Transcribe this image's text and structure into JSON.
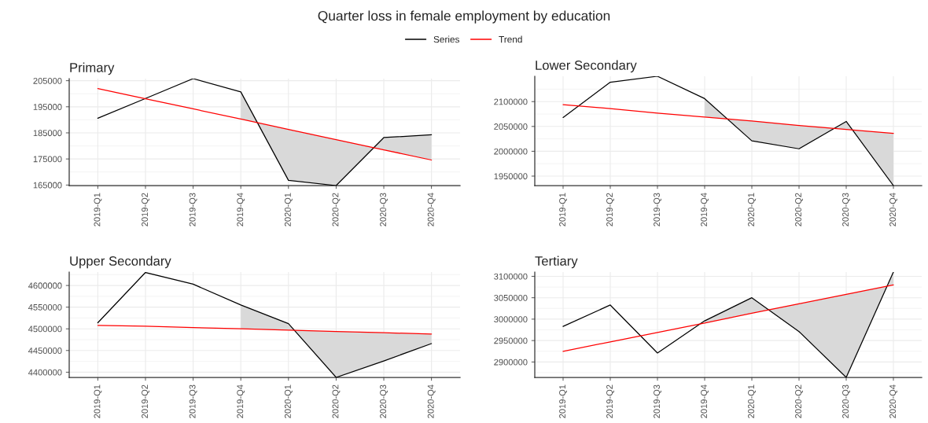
{
  "chart_data": [
    {
      "type": "line",
      "title": "Primary",
      "annotations": [
        "Quarter loss in female employment by education"
      ],
      "legend": "top",
      "grid": true,
      "categories": [
        "2019-Q1",
        "2019-Q2",
        "2019-Q3",
        "2019-Q4",
        "2020-Q1",
        "2020-Q2",
        "2020-Q3",
        "2020-Q4"
      ],
      "ylim": [
        164800,
        205800
      ],
      "yticks": [
        165000,
        175000,
        185000,
        195000,
        205000
      ],
      "series": [
        {
          "name": "Series",
          "color": "#000000",
          "values": [
            190600,
            198200,
            205800,
            200700,
            166800,
            164800,
            183200,
            184300
          ],
          "lower": [
            null,
            null,
            null,
            190300,
            186300,
            182400,
            178500,
            174600
          ],
          "upper": [
            null,
            null,
            null,
            200700,
            166800,
            164800,
            183200,
            184300
          ]
        },
        {
          "name": "Trend",
          "color": "#ff0000",
          "values": [
            202000,
            198100,
            194200,
            190300,
            186300,
            182400,
            178500,
            174600
          ]
        }
      ]
    },
    {
      "type": "line",
      "title": "Lower Secondary",
      "grid": true,
      "categories": [
        "2019-Q1",
        "2019-Q2",
        "2019-Q3",
        "2019-Q4",
        "2020-Q1",
        "2020-Q2",
        "2020-Q3",
        "2020-Q4"
      ],
      "ylim": [
        1931000,
        2151000
      ],
      "yticks": [
        1950000,
        2000000,
        2050000,
        2100000
      ],
      "series": [
        {
          "color": "#000000",
          "values": [
            2068000,
            2139000,
            2151000,
            2106000,
            2021000,
            2005000,
            2060000,
            1931000
          ],
          "lower": [
            null,
            null,
            null,
            2069000,
            2061000,
            2052000,
            2044000,
            2036000
          ],
          "upper": [
            null,
            null,
            null,
            2106000,
            2021000,
            2005000,
            2060000,
            1931000
          ]
        },
        {
          "color": "#ff0000",
          "values": [
            2094000,
            2086000,
            2077000,
            2069000,
            2061000,
            2052000,
            2044000,
            2036000
          ]
        }
      ]
    },
    {
      "type": "line",
      "title": "Upper Secondary",
      "grid": true,
      "categories": [
        "2019-Q1",
        "2019-Q2",
        "2019-Q3",
        "2019-Q4",
        "2020-Q1",
        "2020-Q2",
        "2020-Q3",
        "2020-Q4"
      ],
      "ylim": [
        4388000,
        4631000
      ],
      "yticks": [
        4400000,
        4450000,
        4500000,
        4550000,
        4600000
      ],
      "series": [
        {
          "color": "#000000",
          "values": [
            4514000,
            4630000,
            4603000,
            4555000,
            4512000,
            4388000,
            4426000,
            4466000
          ],
          "lower": [
            null,
            null,
            null,
            4500000,
            4497000,
            4494000,
            4491000,
            4488000
          ],
          "upper": [
            null,
            null,
            null,
            4555000,
            4512000,
            4388000,
            4426000,
            4466000
          ]
        },
        {
          "color": "#ff0000",
          "values": [
            4508000,
            4506000,
            4503000,
            4500000,
            4497000,
            4494000,
            4491000,
            4488000
          ]
        }
      ]
    },
    {
      "type": "line",
      "title": "Tertiary",
      "grid": true,
      "categories": [
        "2019-Q1",
        "2019-Q2",
        "2019-Q3",
        "2019-Q4",
        "2020-Q1",
        "2020-Q2",
        "2020-Q3",
        "2020-Q4"
      ],
      "ylim": [
        2864000,
        3110000
      ],
      "yticks": [
        2900000,
        2950000,
        3000000,
        3050000,
        3100000
      ],
      "series": [
        {
          "color": "#000000",
          "values": [
            2983000,
            3033000,
            2921000,
            2996000,
            3050000,
            2971000,
            2864000,
            3110000
          ],
          "lower": [
            null,
            null,
            null,
            2991000,
            3014000,
            3036000,
            3058000,
            3080000
          ],
          "upper": [
            null,
            null,
            null,
            2996000,
            3050000,
            2971000,
            2864000,
            3110000
          ]
        },
        {
          "color": "#ff0000",
          "values": [
            2925000,
            2947000,
            2969000,
            2991000,
            3014000,
            3036000,
            3058000,
            3080000
          ]
        }
      ]
    }
  ]
}
